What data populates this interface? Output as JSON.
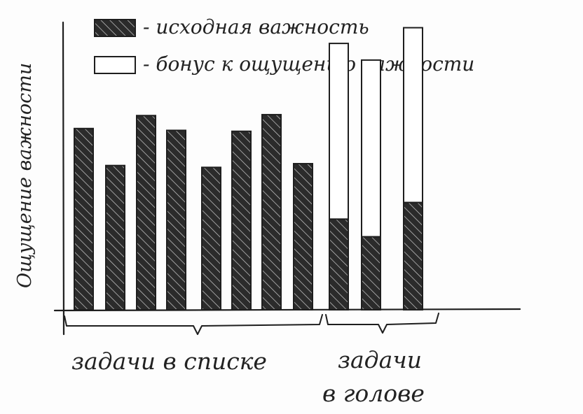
{
  "chart_data": {
    "type": "bar",
    "title": "",
    "ylabel": "Ощущение важности",
    "xlabel": "",
    "legend": {
      "placement": "top",
      "items": [
        {
          "swatch": "dark-hatched",
          "label": "- исходная важность"
        },
        {
          "swatch": "empty",
          "label": "- бонус к ощущению важности"
        }
      ]
    },
    "groups": [
      {
        "label": "задачи в списке"
      },
      {
        "label_lines": [
          "задачи",
          "в голове"
        ]
      }
    ],
    "ylim": [
      0,
      310
    ],
    "bars": [
      {
        "group": 0,
        "base": 196,
        "bonus": 0
      },
      {
        "group": 0,
        "base": 156,
        "bonus": 0
      },
      {
        "group": 0,
        "base": 210,
        "bonus": 0
      },
      {
        "group": 0,
        "base": 194,
        "bonus": 0
      },
      {
        "group": 0,
        "base": 154,
        "bonus": 0
      },
      {
        "group": 0,
        "base": 193,
        "bonus": 0
      },
      {
        "group": 0,
        "base": 211,
        "bonus": 0
      },
      {
        "group": 0,
        "base": 158,
        "bonus": 0
      },
      {
        "group": 1,
        "base": 98,
        "bonus": 190
      },
      {
        "group": 1,
        "base": 79,
        "bonus": 191
      },
      {
        "group": 1,
        "base": 116,
        "bonus": 189
      }
    ],
    "colors": {
      "dark": "#2b2b2b",
      "ink": "#1e1e1e",
      "hatch": "#cfcfcf",
      "empty": "#ffffff"
    }
  }
}
